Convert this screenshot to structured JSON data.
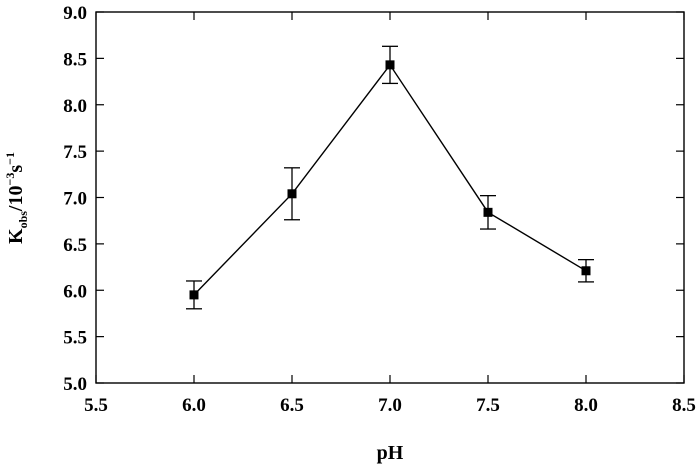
{
  "chart_data": {
    "type": "scatter",
    "connected": true,
    "marker": "filled-square",
    "error_bars": true,
    "xlabel": "pH",
    "ylabel": {
      "main": "K",
      "sub": "obs",
      "unit_prefix": "/10",
      "exp1": "−3",
      "unit_mid": "s",
      "exp2": "−1"
    },
    "xlim": [
      5.5,
      8.5
    ],
    "ylim": [
      5.0,
      9.0
    ],
    "xticks": [
      "5.5",
      "6.0",
      "6.5",
      "7.0",
      "7.5",
      "8.0",
      "8.5"
    ],
    "yticks": [
      "5.0",
      "5.5",
      "6.0",
      "6.5",
      "7.0",
      "7.5",
      "8.0",
      "8.5",
      "9.0"
    ],
    "grid": false,
    "legend": "none",
    "series": [
      {
        "x": [
          6.0,
          6.5,
          7.0,
          7.5,
          8.0
        ],
        "y": [
          5.95,
          7.04,
          8.43,
          6.84,
          6.21
        ],
        "err": [
          0.15,
          0.28,
          0.2,
          0.18,
          0.12
        ]
      }
    ],
    "colors": {
      "line": "#000000",
      "marker": "#000000"
    }
  }
}
